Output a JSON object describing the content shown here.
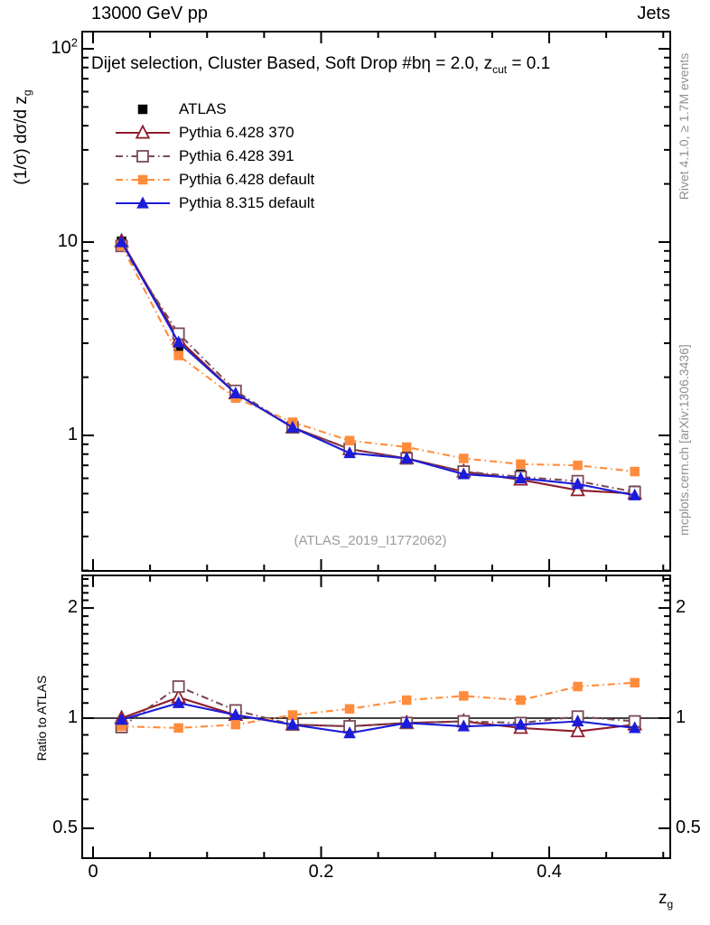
{
  "header": {
    "left": "13000 GeV pp",
    "right": "Jets"
  },
  "plot_title": {
    "text": "Dijet selection, Cluster Based, Soft Drop #bη = 2.0, z",
    "sub": "cut",
    "tail": " = 0.1"
  },
  "watermark": "(ATLAS_2019_I1772062)",
  "side_notes": {
    "top": "Rivet 4.1.0, ≥ 1.7M events",
    "bottom": "mcplots.cern.ch [arXiv:1306.3436]"
  },
  "axis_titles": {
    "y_main": {
      "text": "(1/σ) dσ/d z",
      "sub": "g"
    },
    "y_ratio": "Ratio to ATLAS",
    "x": {
      "text": "z",
      "sub": "g"
    }
  },
  "colors": {
    "atlas": "#000000",
    "pythia6_370": "#8e1c2c",
    "pythia6_391": "#7a4b57",
    "pythia6_default": "#ff8c3c",
    "pythia8_default": "#1c1cd8",
    "frame": "#000000",
    "note_gray": "#8f8f8f",
    "watermark_gray": "#9c9c9c"
  },
  "chart_data": {
    "type": "line",
    "title": "Dijet selection, Cluster Based, Soft Drop #bη = 2.0, z_cut = 0.1",
    "xlabel": "z_g",
    "xlim": [
      0,
      0.506
    ],
    "x_tick_labels": [
      {
        "v": 0,
        "label": "0"
      },
      {
        "v": 0.2,
        "label": "0.2"
      },
      {
        "v": 0.4,
        "label": "0.4"
      }
    ],
    "x_minor_step": 0.05,
    "panels": [
      {
        "name": "main",
        "ylabel": "(1/σ) dσ/d z_g",
        "yscale": "log",
        "ylim": [
          0.2,
          123
        ],
        "y_tick_labels": [
          {
            "v": 100,
            "label": "10",
            "sup": "2"
          },
          {
            "v": 10,
            "label": "10"
          },
          {
            "v": 1,
            "label": "1"
          }
        ]
      },
      {
        "name": "ratio",
        "ylabel": "Ratio to ATLAS",
        "yscale": "log",
        "ylim": [
          0.414,
          2.45
        ],
        "y_tick_labels": [
          {
            "v": 2,
            "label": "2"
          },
          {
            "v": 1,
            "label": "1"
          },
          {
            "v": 0.5,
            "label": "0.5"
          }
        ],
        "reference_line": 1.0
      }
    ],
    "x_bin_centers": [
      0.025,
      0.075,
      0.125,
      0.175,
      0.225,
      0.275,
      0.325,
      0.375,
      0.425,
      0.475
    ],
    "series": [
      {
        "name": "ATLAS",
        "color": "#000000",
        "marker": "square-filled",
        "line": "none",
        "values": [
          10.1,
          2.75,
          1.62,
          1.15,
          0.89,
          0.78,
          0.66,
          0.63,
          0.57,
          0.52
        ],
        "ratio": null
      },
      {
        "name": "Pythia 6.428 370",
        "color": "#8e1c2c",
        "marker": "triangle-open",
        "line": "solid",
        "values": [
          10.1,
          3.14,
          1.65,
          1.1,
          0.85,
          0.76,
          0.65,
          0.59,
          0.52,
          0.5
        ],
        "ratio": [
          1.0,
          1.14,
          1.02,
          0.96,
          0.95,
          0.97,
          0.98,
          0.94,
          0.92,
          0.96
        ]
      },
      {
        "name": "Pythia 6.428 391",
        "color": "#7a4b57",
        "marker": "square-open",
        "line": "dashdot",
        "values": [
          9.55,
          3.36,
          1.7,
          1.1,
          0.85,
          0.76,
          0.65,
          0.61,
          0.58,
          0.51
        ],
        "ratio": [
          0.945,
          1.22,
          1.05,
          0.96,
          0.95,
          0.97,
          0.98,
          0.97,
          1.01,
          0.98
        ]
      },
      {
        "name": "Pythia 6.428 default",
        "color": "#ff8c3c",
        "marker": "square-filled",
        "line": "dashdot",
        "values": [
          9.6,
          2.59,
          1.56,
          1.17,
          0.94,
          0.87,
          0.76,
          0.71,
          0.7,
          0.65
        ],
        "ratio": [
          0.95,
          0.94,
          0.96,
          1.02,
          1.06,
          1.12,
          1.15,
          1.12,
          1.22,
          1.25
        ]
      },
      {
        "name": "Pythia 8.315 default",
        "color": "#1c1cd8",
        "marker": "triangle-filled",
        "line": "solid",
        "values": [
          10.0,
          3.03,
          1.65,
          1.1,
          0.81,
          0.76,
          0.63,
          0.6,
          0.56,
          0.49
        ],
        "ratio": [
          0.99,
          1.1,
          1.02,
          0.96,
          0.91,
          0.97,
          0.95,
          0.96,
          0.98,
          0.94
        ]
      }
    ]
  }
}
